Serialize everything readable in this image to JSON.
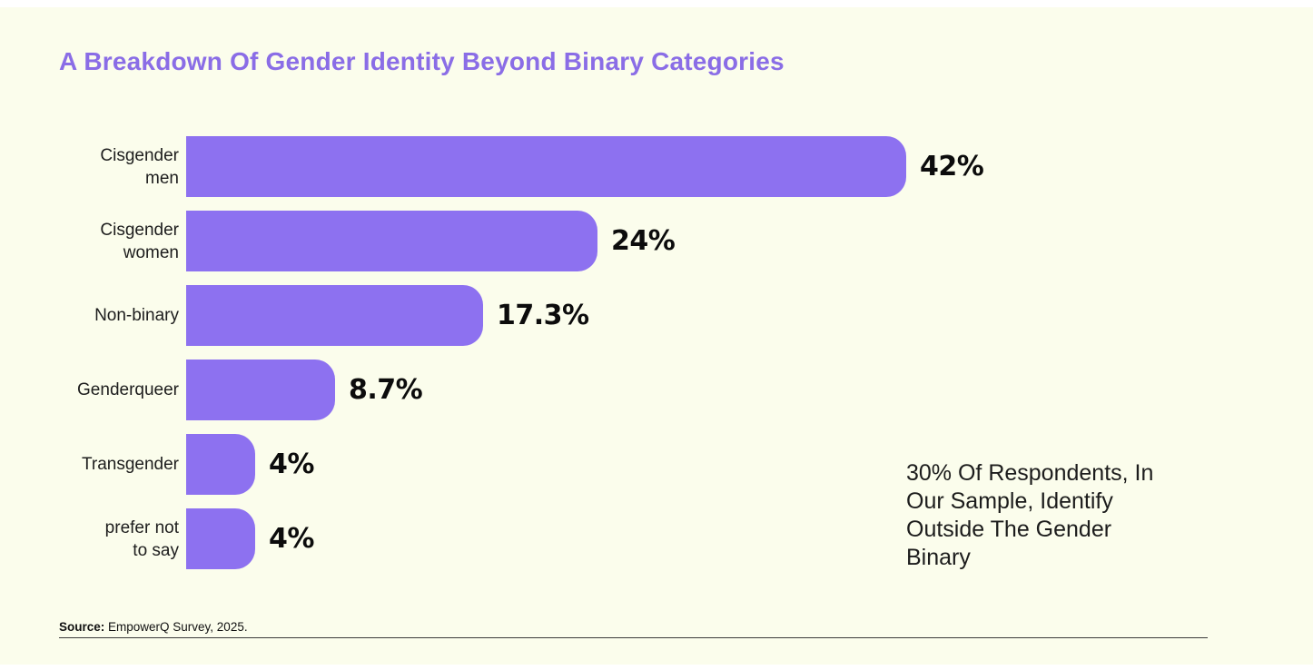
{
  "colors": {
    "outer_background": "#ffffff",
    "panel_background": "#fbfdec",
    "title": "#8a6de6",
    "bar": "#8d71f0",
    "category_label": "#1d1d1d",
    "value_label": "#0c0c0c",
    "annotation": "#1c1c1c"
  },
  "title": {
    "text": "A Breakdown Of Gender Identity Beyond Binary Categories"
  },
  "annotation": {
    "text": "30% Of Respondents, In\nOur Sample, Identify\nOutside The Gender\nBinary"
  },
  "source": {
    "label": "Source:",
    "text": " EmpowerQ Survey, 2025."
  },
  "chart_data": {
    "type": "bar",
    "orientation": "horizontal",
    "title": "A Breakdown Of Gender Identity Beyond Binary Categories",
    "categories": [
      "Cisgender men",
      "Cisgender women",
      "Non-binary",
      "Genderqueer",
      "Transgender",
      "prefer not to say"
    ],
    "label_lines": [
      "Cisgender\nmen",
      "Cisgender\nwomen",
      "Non-binary",
      "Genderqueer",
      "Transgender",
      "prefer not\nto say"
    ],
    "values": [
      42,
      24,
      17.3,
      8.7,
      4,
      4
    ],
    "value_labels": [
      "42%",
      "24%",
      "17.3%",
      "8.7%",
      "4%",
      "4%"
    ],
    "xlim": [
      0,
      42
    ],
    "grid": false,
    "legend": false,
    "bar_color": "#8d71f0",
    "annotation": "30% Of Respondents, In Our Sample, Identify Outside The Gender Binary",
    "source": "Source: EmpowerQ Survey, 2025."
  }
}
